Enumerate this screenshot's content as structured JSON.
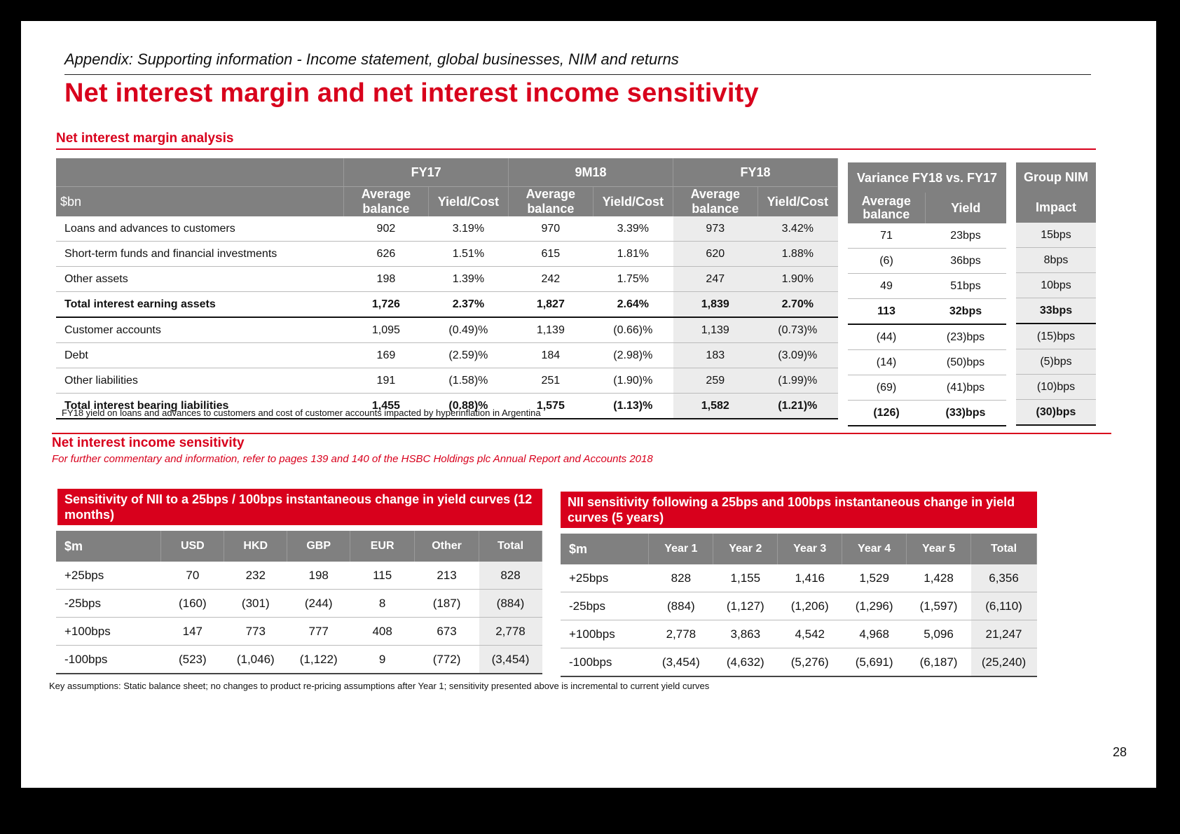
{
  "header": {
    "subtitle": "Appendix: Supporting information - Income statement, global businesses, NIM and returns",
    "title": "Net interest margin and net interest income sensitivity"
  },
  "nim": {
    "section_title": "Net interest margin analysis",
    "unit": "$bn",
    "periods": [
      "FY17",
      "9M18",
      "FY18"
    ],
    "sub_headers": {
      "avg": "Average balance",
      "yield": "Yield/Cost"
    },
    "rows": [
      {
        "label": "Loans and advances to customers",
        "values": [
          "902",
          "3.19%",
          "970",
          "3.39%",
          "973",
          "3.42%"
        ],
        "total": false
      },
      {
        "label": "Short-term funds and financial investments",
        "values": [
          "626",
          "1.51%",
          "615",
          "1.81%",
          "620",
          "1.88%"
        ],
        "total": false
      },
      {
        "label": "Other assets",
        "values": [
          "198",
          "1.39%",
          "242",
          "1.75%",
          "247",
          "1.90%"
        ],
        "total": false
      },
      {
        "label": "Total interest earning assets",
        "values": [
          "1,726",
          "2.37%",
          "1,827",
          "2.64%",
          "1,839",
          "2.70%"
        ],
        "total": true
      },
      {
        "label": "Customer accounts",
        "values": [
          "1,095",
          "(0.49)%",
          "1,139",
          "(0.66)%",
          "1,139",
          "(0.73)%"
        ],
        "total": false
      },
      {
        "label": "Debt",
        "values": [
          "169",
          "(2.59)%",
          "184",
          "(2.98)%",
          "183",
          "(3.09)%"
        ],
        "total": false
      },
      {
        "label": "Other liabilities",
        "values": [
          "191",
          "(1.58)%",
          "251",
          "(1.90)%",
          "259",
          "(1.99)%"
        ],
        "total": false
      },
      {
        "label": "Total interest bearing liabilities",
        "values": [
          "1,455",
          "(0.88)%",
          "1,575",
          "(1.13)%",
          "1,582",
          "(1.21)%"
        ],
        "total": true
      }
    ],
    "footnote": "FY18 yield on loans and advances to customers and cost of customer accounts impacted by hyperinflation in Argentina"
  },
  "variance": {
    "title": "Variance FY18 vs. FY17",
    "col_avg": "Average balance",
    "col_yield": "Yield",
    "rows": [
      [
        "71",
        "23bps"
      ],
      [
        "(6)",
        "36bps"
      ],
      [
        "49",
        "51bps"
      ],
      [
        "113",
        "32bps"
      ],
      [
        "(44)",
        "(23)bps"
      ],
      [
        "(14)",
        "(50)bps"
      ],
      [
        "(69)",
        "(41)bps"
      ],
      [
        "(126)",
        "(33)bps"
      ]
    ]
  },
  "group_nim": {
    "title": "Group NIM",
    "col": "Impact",
    "rows": [
      "15bps",
      "8bps",
      "10bps",
      "33bps",
      "(15)bps",
      "(5)bps",
      "(10)bps",
      "(30)bps"
    ]
  },
  "nii": {
    "section_title": "Net interest income sensitivity",
    "commentary": "For further commentary and information, refer to pages 139 and 140 of the HSBC Holdings plc Annual Report and Accounts 2018"
  },
  "sens1": {
    "title": "Sensitivity of NII to a 25bps / 100bps instantaneous change in yield curves (12 months)",
    "unit": "$m",
    "columns": [
      "USD",
      "HKD",
      "GBP",
      "EUR",
      "Other",
      "Total"
    ],
    "rows": [
      {
        "label": "+25bps",
        "values": [
          "70",
          "232",
          "198",
          "115",
          "213",
          "828"
        ]
      },
      {
        "label": "-25bps",
        "values": [
          "(160)",
          "(301)",
          "(244)",
          "8",
          "(187)",
          "(884)"
        ]
      },
      {
        "label": "+100bps",
        "values": [
          "147",
          "773",
          "777",
          "408",
          "673",
          "2,778"
        ]
      },
      {
        "label": "-100bps",
        "values": [
          "(523)",
          "(1,046)",
          "(1,122)",
          "9",
          "(772)",
          "(3,454)"
        ]
      }
    ]
  },
  "sens2": {
    "title": "NII sensitivity following a 25bps and 100bps instantaneous change in yield curves (5 years)",
    "unit": "$m",
    "columns": [
      "Year 1",
      "Year 2",
      "Year 3",
      "Year 4",
      "Year 5",
      "Total"
    ],
    "rows": [
      {
        "label": "+25bps",
        "values": [
          "828",
          "1,155",
          "1,416",
          "1,529",
          "1,428",
          "6,356"
        ]
      },
      {
        "label": "-25bps",
        "values": [
          "(884)",
          "(1,127)",
          "(1,206)",
          "(1,296)",
          "(1,597)",
          "(6,110)"
        ]
      },
      {
        "label": "+100bps",
        "values": [
          "2,778",
          "3,863",
          "4,542",
          "4,968",
          "5,096",
          "21,247"
        ]
      },
      {
        "label": "-100bps",
        "values": [
          "(3,454)",
          "(4,632)",
          "(5,276)",
          "(5,691)",
          "(6,187)",
          "(25,240)"
        ]
      }
    ]
  },
  "key_assumptions": "Key assumptions: Static balance sheet; no changes to product re-pricing assumptions after Year 1; sensitivity presented above is incremental to current yield curves",
  "page_number": "28",
  "colors": {
    "brand_red": "#d8001c",
    "header_grey": "#808080",
    "shade_grey": "#ececec",
    "background": "#000000"
  }
}
